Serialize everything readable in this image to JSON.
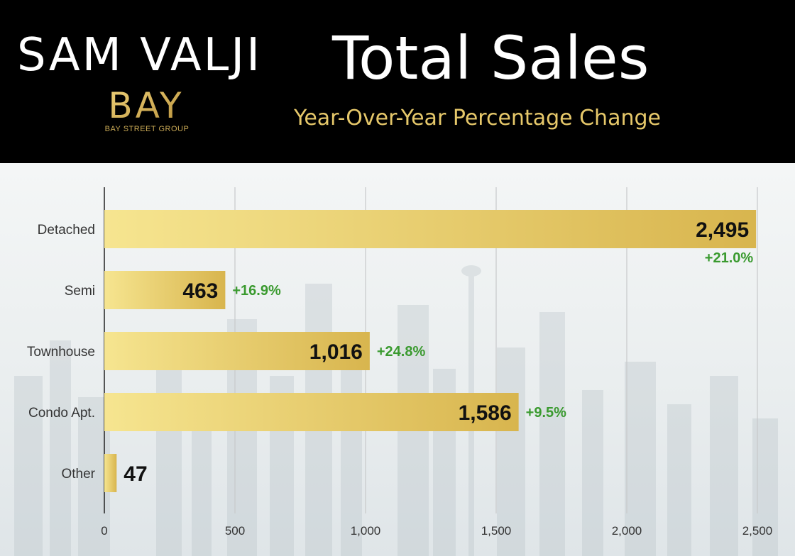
{
  "header": {
    "brand_name": "SAM VALJI",
    "logo_text": "BAY",
    "logo_subtext": "BAY STREET GROUP",
    "title": "Total Sales",
    "subtitle": "Year-Over-Year Percentage Change"
  },
  "colors": {
    "header_bg": "#000000",
    "title": "#ffffff",
    "subtitle": "#e6c86a",
    "bar_light": "#f6e590",
    "bar_dark": "#d8b54e",
    "change_positive": "#3a9a2f",
    "value_text": "#111111"
  },
  "chart_data": {
    "type": "bar",
    "orientation": "horizontal",
    "title": "Total Sales",
    "subtitle": "Year-Over-Year Percentage Change",
    "categories": [
      "Detached",
      "Semi",
      "Townhouse",
      "Condo Apt.",
      "Other"
    ],
    "values": [
      2495,
      463,
      1016,
      1586,
      47
    ],
    "value_labels": [
      "2,495",
      "463",
      "1,016",
      "1,586",
      "47"
    ],
    "yoy_change": [
      "+21.0%",
      "+16.9%",
      "+24.8%",
      "+9.5%",
      ""
    ],
    "xlim": [
      0,
      2500
    ],
    "xticks": [
      0,
      500,
      1000,
      1500,
      2000,
      2500
    ],
    "xtick_labels": [
      "0",
      "500",
      "1,000",
      "1,500",
      "2,000",
      "2,500"
    ],
    "grid": true,
    "legend": "none"
  }
}
